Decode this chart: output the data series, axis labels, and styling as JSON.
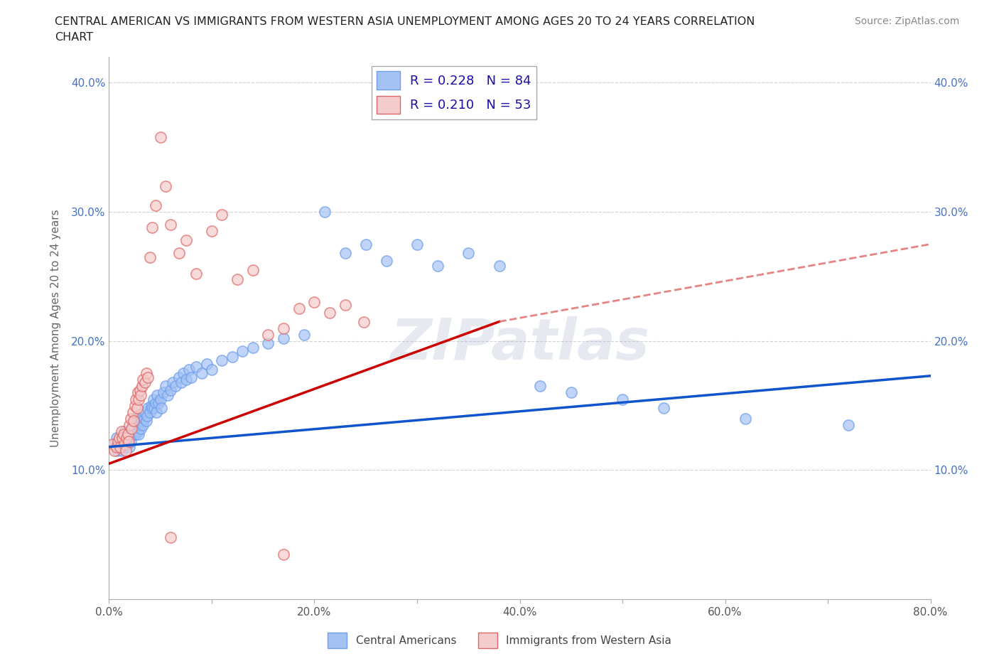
{
  "title_line1": "CENTRAL AMERICAN VS IMMIGRANTS FROM WESTERN ASIA UNEMPLOYMENT AMONG AGES 20 TO 24 YEARS CORRELATION",
  "title_line2": "CHART",
  "source": "Source: ZipAtlas.com",
  "ylabel": "Unemployment Among Ages 20 to 24 years",
  "xlim": [
    0.0,
    0.8
  ],
  "ylim": [
    0.0,
    0.42
  ],
  "xticks": [
    0.0,
    0.1,
    0.2,
    0.3,
    0.4,
    0.5,
    0.6,
    0.7,
    0.8
  ],
  "xticklabels": [
    "0.0%",
    "",
    "20.0%",
    "",
    "40.0%",
    "",
    "60.0%",
    "",
    "80.0%"
  ],
  "yticks": [
    0.1,
    0.2,
    0.3,
    0.4
  ],
  "yticklabels": [
    "10.0%",
    "20.0%",
    "30.0%",
    "40.0%"
  ],
  "blue_face_color": "#a4c2f4",
  "blue_edge_color": "#6d9eeb",
  "pink_face_color": "#f4cccc",
  "pink_edge_color": "#e06666",
  "blue_line_color": "#1155cc",
  "pink_line_color": "#cc0000",
  "pink_dash_color": "#e06666",
  "R_blue": 0.228,
  "N_blue": 84,
  "R_pink": 0.21,
  "N_pink": 53,
  "watermark": "ZIPatlas",
  "watermark_color": "#b0b8d0",
  "legend_label_blue": "Central Americans",
  "legend_label_pink": "Immigrants from Western Asia",
  "blue_trend": [
    0.0,
    0.8,
    0.118,
    0.173
  ],
  "pink_trend_solid": [
    0.0,
    0.38,
    0.105,
    0.215
  ],
  "pink_trend_dashed": [
    0.38,
    0.8,
    0.215,
    0.275
  ],
  "blue_scatter": [
    [
      0.005,
      0.12
    ],
    [
      0.007,
      0.125
    ],
    [
      0.008,
      0.115
    ],
    [
      0.01,
      0.118
    ],
    [
      0.01,
      0.122
    ],
    [
      0.012,
      0.12
    ],
    [
      0.013,
      0.115
    ],
    [
      0.014,
      0.125
    ],
    [
      0.015,
      0.118
    ],
    [
      0.015,
      0.13
    ],
    [
      0.016,
      0.122
    ],
    [
      0.017,
      0.128
    ],
    [
      0.018,
      0.12
    ],
    [
      0.019,
      0.125
    ],
    [
      0.02,
      0.13
    ],
    [
      0.02,
      0.118
    ],
    [
      0.021,
      0.122
    ],
    [
      0.022,
      0.128
    ],
    [
      0.023,
      0.135
    ],
    [
      0.024,
      0.128
    ],
    [
      0.025,
      0.132
    ],
    [
      0.025,
      0.14
    ],
    [
      0.026,
      0.128
    ],
    [
      0.027,
      0.135
    ],
    [
      0.028,
      0.13
    ],
    [
      0.029,
      0.128
    ],
    [
      0.03,
      0.135
    ],
    [
      0.03,
      0.14
    ],
    [
      0.031,
      0.132
    ],
    [
      0.032,
      0.138
    ],
    [
      0.033,
      0.135
    ],
    [
      0.034,
      0.14
    ],
    [
      0.035,
      0.145
    ],
    [
      0.036,
      0.138
    ],
    [
      0.037,
      0.142
    ],
    [
      0.038,
      0.148
    ],
    [
      0.04,
      0.145
    ],
    [
      0.041,
      0.15
    ],
    [
      0.042,
      0.148
    ],
    [
      0.043,
      0.155
    ],
    [
      0.044,
      0.148
    ],
    [
      0.045,
      0.152
    ],
    [
      0.046,
      0.145
    ],
    [
      0.047,
      0.158
    ],
    [
      0.048,
      0.152
    ],
    [
      0.05,
      0.155
    ],
    [
      0.051,
      0.148
    ],
    [
      0.053,
      0.16
    ],
    [
      0.055,
      0.165
    ],
    [
      0.057,
      0.158
    ],
    [
      0.06,
      0.162
    ],
    [
      0.062,
      0.168
    ],
    [
      0.065,
      0.165
    ],
    [
      0.068,
      0.172
    ],
    [
      0.07,
      0.168
    ],
    [
      0.072,
      0.175
    ],
    [
      0.075,
      0.17
    ],
    [
      0.078,
      0.178
    ],
    [
      0.08,
      0.172
    ],
    [
      0.085,
      0.18
    ],
    [
      0.09,
      0.175
    ],
    [
      0.095,
      0.182
    ],
    [
      0.1,
      0.178
    ],
    [
      0.11,
      0.185
    ],
    [
      0.12,
      0.188
    ],
    [
      0.13,
      0.192
    ],
    [
      0.14,
      0.195
    ],
    [
      0.155,
      0.198
    ],
    [
      0.17,
      0.202
    ],
    [
      0.19,
      0.205
    ],
    [
      0.21,
      0.3
    ],
    [
      0.23,
      0.268
    ],
    [
      0.25,
      0.275
    ],
    [
      0.27,
      0.262
    ],
    [
      0.3,
      0.275
    ],
    [
      0.32,
      0.258
    ],
    [
      0.35,
      0.268
    ],
    [
      0.38,
      0.258
    ],
    [
      0.42,
      0.165
    ],
    [
      0.45,
      0.16
    ],
    [
      0.5,
      0.155
    ],
    [
      0.54,
      0.148
    ],
    [
      0.62,
      0.14
    ],
    [
      0.72,
      0.135
    ]
  ],
  "pink_scatter": [
    [
      0.003,
      0.12
    ],
    [
      0.005,
      0.115
    ],
    [
      0.007,
      0.118
    ],
    [
      0.009,
      0.122
    ],
    [
      0.01,
      0.125
    ],
    [
      0.011,
      0.118
    ],
    [
      0.012,
      0.13
    ],
    [
      0.013,
      0.125
    ],
    [
      0.014,
      0.128
    ],
    [
      0.015,
      0.12
    ],
    [
      0.016,
      0.115
    ],
    [
      0.017,
      0.125
    ],
    [
      0.018,
      0.128
    ],
    [
      0.019,
      0.122
    ],
    [
      0.02,
      0.135
    ],
    [
      0.021,
      0.14
    ],
    [
      0.022,
      0.132
    ],
    [
      0.023,
      0.145
    ],
    [
      0.024,
      0.138
    ],
    [
      0.025,
      0.15
    ],
    [
      0.026,
      0.155
    ],
    [
      0.027,
      0.148
    ],
    [
      0.028,
      0.16
    ],
    [
      0.029,
      0.155
    ],
    [
      0.03,
      0.162
    ],
    [
      0.031,
      0.158
    ],
    [
      0.032,
      0.165
    ],
    [
      0.033,
      0.17
    ],
    [
      0.035,
      0.168
    ],
    [
      0.036,
      0.175
    ],
    [
      0.038,
      0.172
    ],
    [
      0.04,
      0.265
    ],
    [
      0.042,
      0.288
    ],
    [
      0.045,
      0.305
    ],
    [
      0.05,
      0.358
    ],
    [
      0.055,
      0.32
    ],
    [
      0.06,
      0.29
    ],
    [
      0.068,
      0.268
    ],
    [
      0.075,
      0.278
    ],
    [
      0.085,
      0.252
    ],
    [
      0.1,
      0.285
    ],
    [
      0.11,
      0.298
    ],
    [
      0.125,
      0.248
    ],
    [
      0.14,
      0.255
    ],
    [
      0.155,
      0.205
    ],
    [
      0.17,
      0.21
    ],
    [
      0.185,
      0.225
    ],
    [
      0.2,
      0.23
    ],
    [
      0.215,
      0.222
    ],
    [
      0.23,
      0.228
    ],
    [
      0.248,
      0.215
    ],
    [
      0.06,
      0.048
    ],
    [
      0.17,
      0.035
    ]
  ]
}
